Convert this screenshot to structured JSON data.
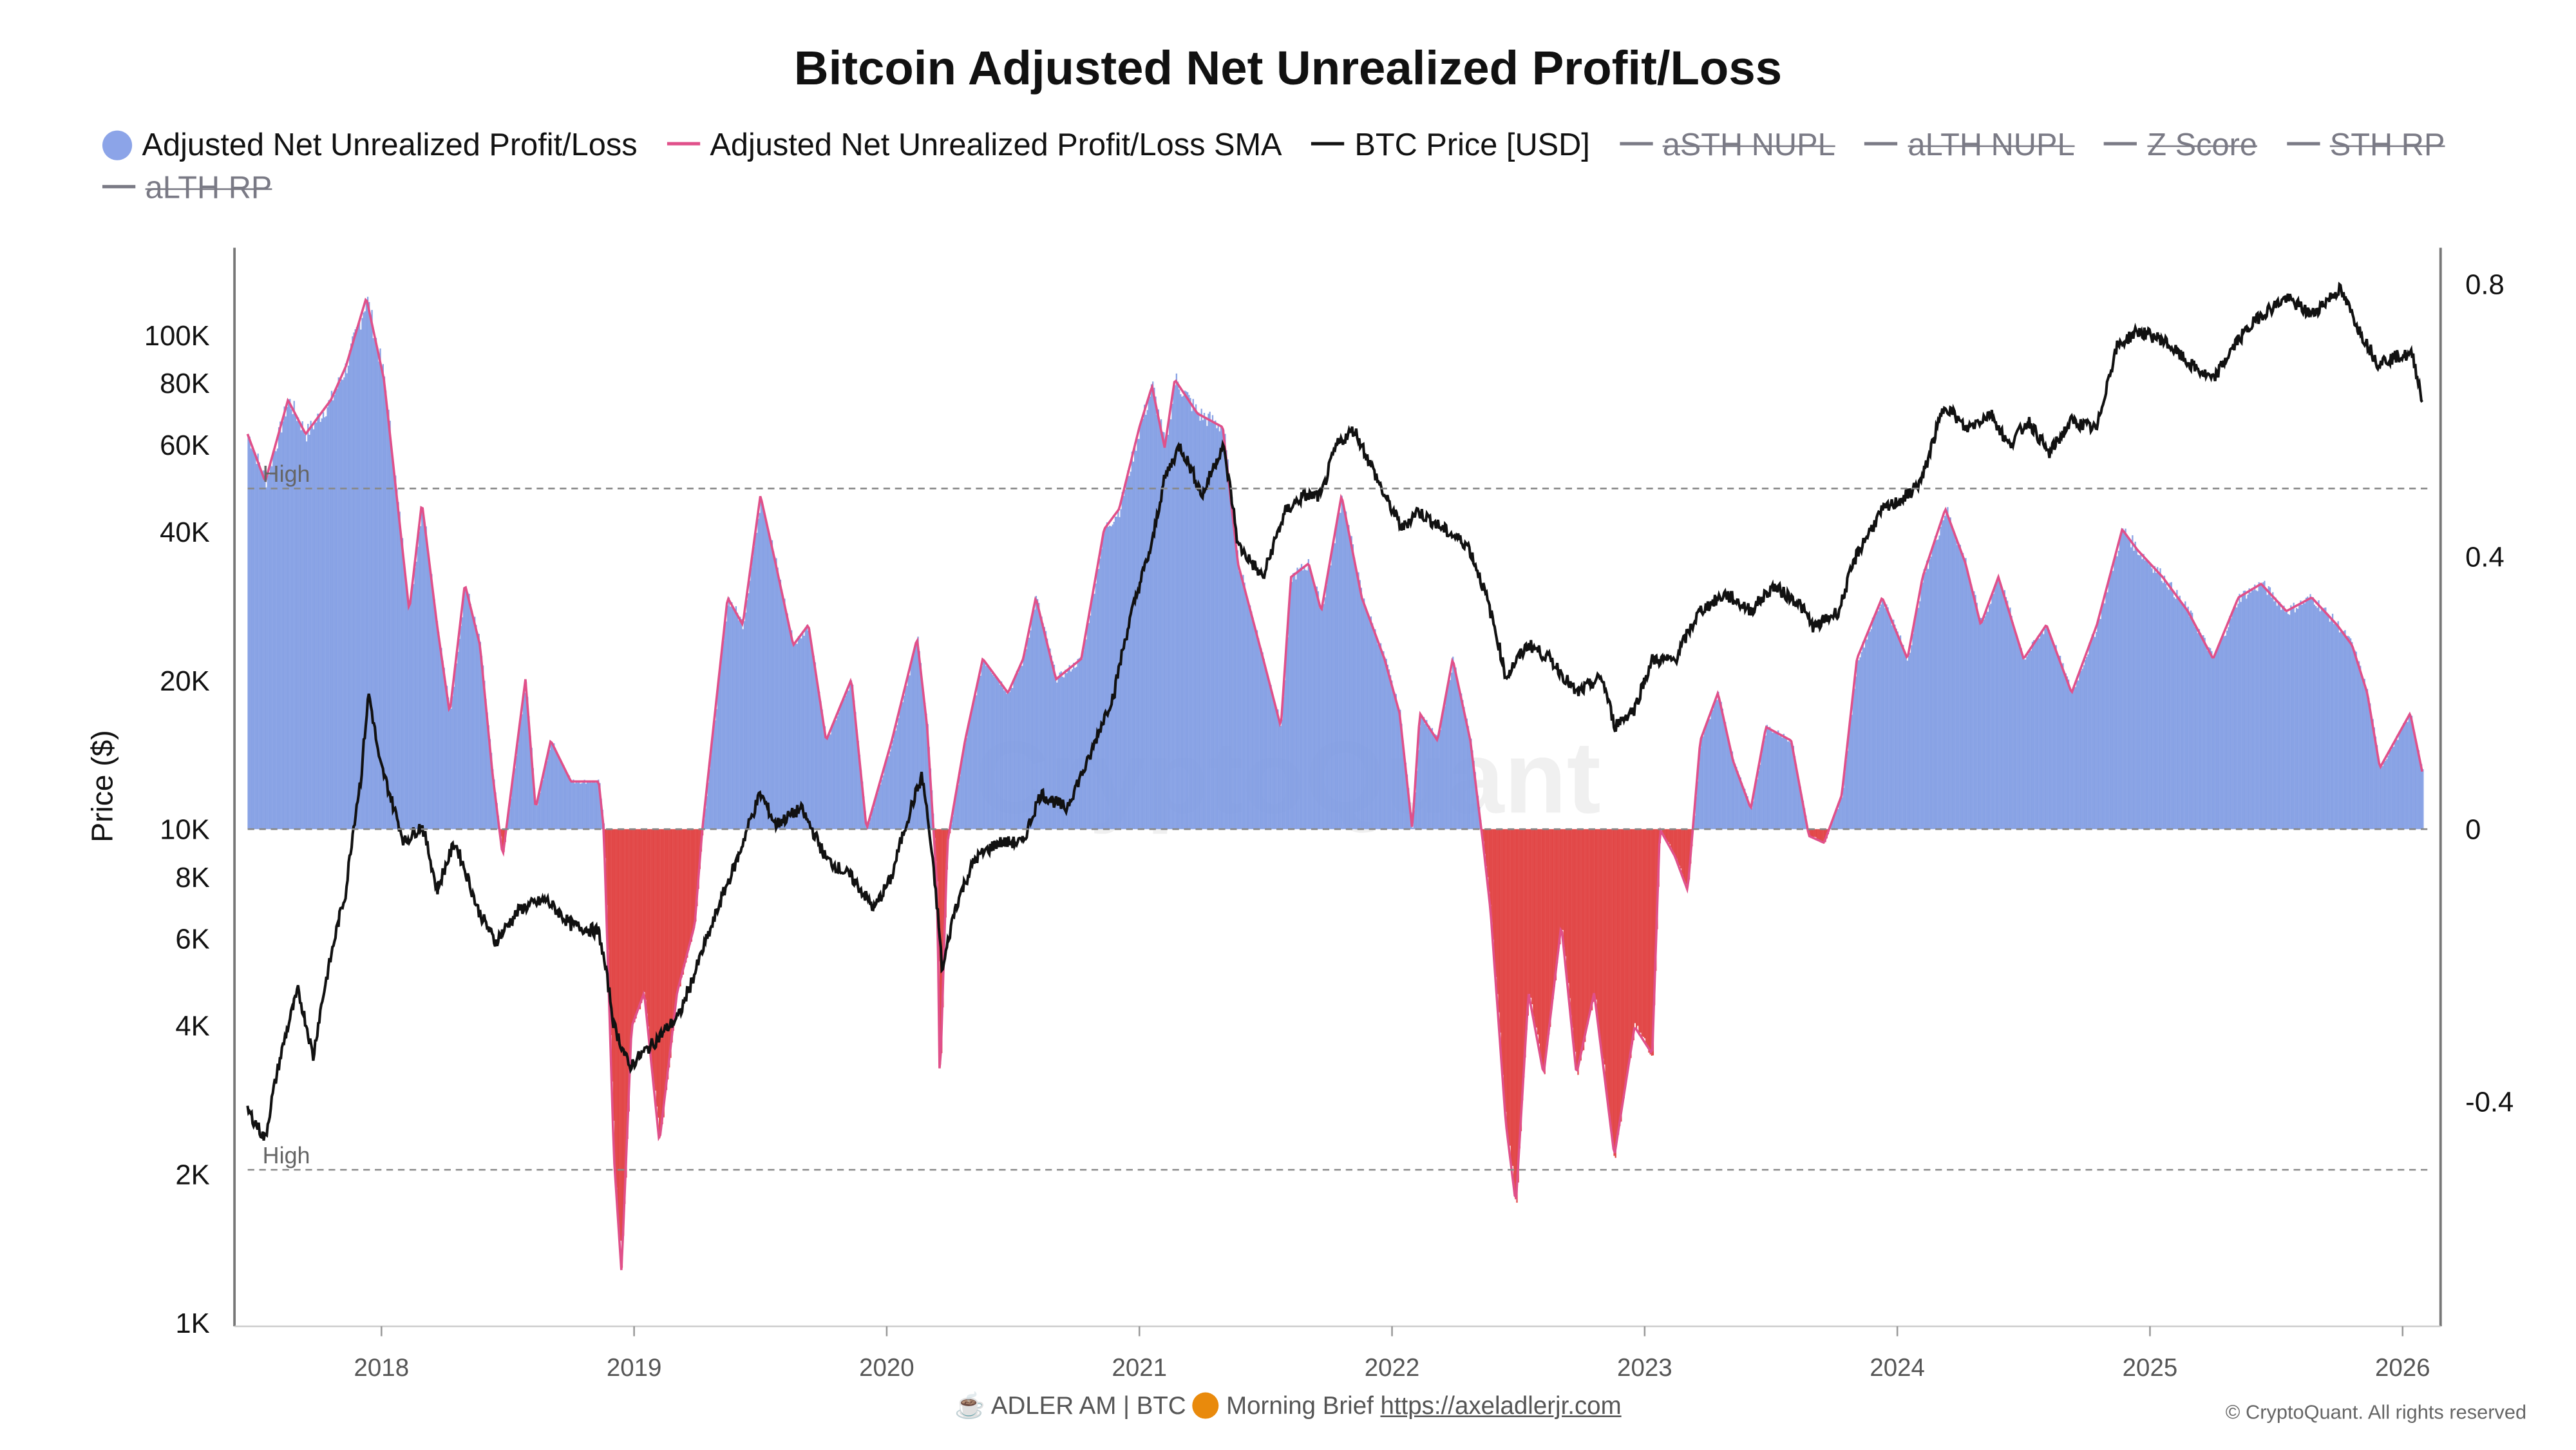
{
  "title": "Bitcoin Adjusted Net Unrealized Profit/Loss",
  "legend": [
    {
      "label": "Adjusted Net Unrealized Profit/Loss",
      "color": "#8ca4e8",
      "shape": "dot",
      "enabled": true
    },
    {
      "label": "Adjusted Net Unrealized Profit/Loss SMA",
      "color": "#e0508a",
      "shape": "line",
      "enabled": true
    },
    {
      "label": "BTC Price [USD]",
      "color": "#111111",
      "shape": "line",
      "enabled": true
    },
    {
      "label": "aSTH NUPL",
      "color": "#7a7a85",
      "shape": "line",
      "enabled": false
    },
    {
      "label": "aLTH NUPL",
      "color": "#7a7a85",
      "shape": "line",
      "enabled": false
    },
    {
      "label": "Z Score",
      "color": "#7a7a85",
      "shape": "line",
      "enabled": false
    },
    {
      "label": "STH RP",
      "color": "#7a7a85",
      "shape": "line",
      "enabled": false
    },
    {
      "label": "aLTH RP",
      "color": "#7a7a85",
      "shape": "line",
      "enabled": false
    }
  ],
  "footer": {
    "coffee_icon": "coffee-cup-icon",
    "text1": "ADLER AM | BTC",
    "coin_icon": "orange-circle-icon",
    "text2": "Morning Brief",
    "link": "https://axeladlerjr.com",
    "copyright": "© CryptoQuant. All rights reserved"
  },
  "watermark": "CryptoQuant",
  "chart_data": {
    "type": "bar+line",
    "title": "Bitcoin Adjusted Net Unrealized Profit/Loss",
    "ylabel": "Price ($)",
    "y_left": {
      "scale": "log",
      "range": [
        1000,
        150000
      ],
      "ticks": [
        {
          "v": 100000,
          "l": "100K"
        },
        {
          "v": 80000,
          "l": "80K"
        },
        {
          "v": 60000,
          "l": "60K"
        },
        {
          "v": 40000,
          "l": "40K"
        },
        {
          "v": 20000,
          "l": "20K"
        },
        {
          "v": 10000,
          "l": "10K"
        },
        {
          "v": 8000,
          "l": "8K"
        },
        {
          "v": 6000,
          "l": "6K"
        },
        {
          "v": 4000,
          "l": "4K"
        },
        {
          "v": 2000,
          "l": "2K"
        },
        {
          "v": 1000,
          "l": "1K"
        }
      ]
    },
    "y_right": {
      "range": [
        -0.73,
        0.8
      ],
      "ticks": [
        {
          "v": 0.8,
          "l": "0.8"
        },
        {
          "v": 0.4,
          "l": "0.4"
        },
        {
          "v": 0,
          "l": "0"
        },
        {
          "v": -0.4,
          "l": "-0.4"
        }
      ]
    },
    "x_ticks": [
      2018,
      2019,
      2020,
      2021,
      2022,
      2023,
      2024,
      2025,
      2026
    ],
    "x_range": [
      2017.47,
      2026.1
    ],
    "thresholds": [
      {
        "label": "High",
        "value": 0.5
      },
      {
        "label": "High",
        "value": -0.5
      }
    ],
    "nupl": [
      [
        2017.47,
        0.58
      ],
      [
        2017.54,
        0.51
      ],
      [
        2017.63,
        0.63
      ],
      [
        2017.7,
        0.58
      ],
      [
        2017.8,
        0.63
      ],
      [
        2017.86,
        0.68
      ],
      [
        2017.94,
        0.78
      ],
      [
        2018.01,
        0.66
      ],
      [
        2018.06,
        0.49
      ],
      [
        2018.11,
        0.32
      ],
      [
        2018.16,
        0.48
      ],
      [
        2018.22,
        0.3
      ],
      [
        2018.27,
        0.17
      ],
      [
        2018.33,
        0.36
      ],
      [
        2018.39,
        0.27
      ],
      [
        2018.44,
        0.08
      ],
      [
        2018.48,
        -0.04
      ],
      [
        2018.57,
        0.22
      ],
      [
        2018.61,
        0.03
      ],
      [
        2018.67,
        0.13
      ],
      [
        2018.75,
        0.07
      ],
      [
        2018.86,
        0.07
      ],
      [
        2018.88,
        0
      ],
      [
        2018.92,
        -0.48
      ],
      [
        2018.95,
        -0.65
      ],
      [
        2018.99,
        -0.29
      ],
      [
        2019.04,
        -0.24
      ],
      [
        2019.1,
        -0.46
      ],
      [
        2019.17,
        -0.24
      ],
      [
        2019.24,
        -0.14
      ],
      [
        2019.27,
        0
      ],
      [
        2019.37,
        0.34
      ],
      [
        2019.43,
        0.3
      ],
      [
        2019.5,
        0.49
      ],
      [
        2019.56,
        0.39
      ],
      [
        2019.63,
        0.27
      ],
      [
        2019.69,
        0.3
      ],
      [
        2019.76,
        0.13
      ],
      [
        2019.86,
        0.22
      ],
      [
        2019.92,
        0.0
      ],
      [
        2020.02,
        0.13
      ],
      [
        2020.12,
        0.28
      ],
      [
        2020.16,
        0.15
      ],
      [
        2020.2,
        -0.09
      ],
      [
        2020.21,
        -0.38
      ],
      [
        2020.24,
        -0.02
      ],
      [
        2020.31,
        0.13
      ],
      [
        2020.38,
        0.25
      ],
      [
        2020.48,
        0.2
      ],
      [
        2020.54,
        0.25
      ],
      [
        2020.59,
        0.34
      ],
      [
        2020.67,
        0.22
      ],
      [
        2020.77,
        0.25
      ],
      [
        2020.86,
        0.44
      ],
      [
        2020.92,
        0.47
      ],
      [
        2021.0,
        0.59
      ],
      [
        2021.05,
        0.65
      ],
      [
        2021.1,
        0.56
      ],
      [
        2021.14,
        0.66
      ],
      [
        2021.23,
        0.61
      ],
      [
        2021.33,
        0.59
      ],
      [
        2021.39,
        0.39
      ],
      [
        2021.49,
        0.25
      ],
      [
        2021.56,
        0.15
      ],
      [
        2021.6,
        0.37
      ],
      [
        2021.67,
        0.39
      ],
      [
        2021.72,
        0.32
      ],
      [
        2021.8,
        0.49
      ],
      [
        2021.88,
        0.34
      ],
      [
        2021.97,
        0.25
      ],
      [
        2022.03,
        0.17
      ],
      [
        2022.08,
        0.0
      ],
      [
        2022.11,
        0.17
      ],
      [
        2022.18,
        0.13
      ],
      [
        2022.24,
        0.25
      ],
      [
        2022.31,
        0.13
      ],
      [
        2022.36,
        -0.02
      ],
      [
        2022.39,
        -0.12
      ],
      [
        2022.45,
        -0.43
      ],
      [
        2022.49,
        -0.55
      ],
      [
        2022.54,
        -0.24
      ],
      [
        2022.6,
        -0.36
      ],
      [
        2022.67,
        -0.14
      ],
      [
        2022.73,
        -0.36
      ],
      [
        2022.8,
        -0.24
      ],
      [
        2022.88,
        -0.48
      ],
      [
        2022.96,
        -0.29
      ],
      [
        2023.03,
        -0.33
      ],
      [
        2023.06,
        0
      ],
      [
        2023.12,
        -0.04
      ],
      [
        2023.17,
        -0.09
      ],
      [
        2023.22,
        0.13
      ],
      [
        2023.29,
        0.2
      ],
      [
        2023.35,
        0.1
      ],
      [
        2023.42,
        0.03
      ],
      [
        2023.48,
        0.15
      ],
      [
        2023.58,
        0.13
      ],
      [
        2023.65,
        -0.01
      ],
      [
        2023.71,
        -0.02
      ],
      [
        2023.78,
        0.05
      ],
      [
        2023.84,
        0.25
      ],
      [
        2023.94,
        0.34
      ],
      [
        2024.04,
        0.25
      ],
      [
        2024.1,
        0.37
      ],
      [
        2024.19,
        0.47
      ],
      [
        2024.27,
        0.39
      ],
      [
        2024.33,
        0.3
      ],
      [
        2024.4,
        0.37
      ],
      [
        2024.5,
        0.25
      ],
      [
        2024.59,
        0.3
      ],
      [
        2024.69,
        0.2
      ],
      [
        2024.79,
        0.3
      ],
      [
        2024.89,
        0.44
      ],
      [
        2024.95,
        0.41
      ],
      [
        2025.05,
        0.37
      ],
      [
        2025.15,
        0.32
      ],
      [
        2025.25,
        0.25
      ],
      [
        2025.35,
        0.34
      ],
      [
        2025.44,
        0.36
      ],
      [
        2025.54,
        0.32
      ],
      [
        2025.64,
        0.34
      ],
      [
        2025.74,
        0.3
      ],
      [
        2025.8,
        0.27
      ],
      [
        2025.86,
        0.2
      ],
      [
        2025.91,
        0.09
      ],
      [
        2025.97,
        0.13
      ],
      [
        2026.03,
        0.17
      ],
      [
        2026.08,
        0.08
      ]
    ],
    "btc_price": [
      [
        2017.47,
        2700
      ],
      [
        2017.54,
        2350
      ],
      [
        2017.6,
        3450
      ],
      [
        2017.67,
        4700
      ],
      [
        2017.73,
        3450
      ],
      [
        2017.8,
        5500
      ],
      [
        2017.86,
        7500
      ],
      [
        2017.92,
        12800
      ],
      [
        2017.95,
        18800
      ],
      [
        2017.99,
        13800
      ],
      [
        2018.05,
        11000
      ],
      [
        2018.09,
        9400
      ],
      [
        2018.16,
        10200
      ],
      [
        2018.22,
        7500
      ],
      [
        2018.29,
        9400
      ],
      [
        2018.38,
        6900
      ],
      [
        2018.45,
        5900
      ],
      [
        2018.55,
        6900
      ],
      [
        2018.65,
        7200
      ],
      [
        2018.75,
        6400
      ],
      [
        2018.86,
        6200
      ],
      [
        2018.92,
        4000
      ],
      [
        2018.98,
        3300
      ],
      [
        2019.08,
        3700
      ],
      [
        2019.18,
        4200
      ],
      [
        2019.24,
        5100
      ],
      [
        2019.31,
        6400
      ],
      [
        2019.41,
        8700
      ],
      [
        2019.5,
        11800
      ],
      [
        2019.56,
        10200
      ],
      [
        2019.66,
        11000
      ],
      [
        2019.76,
        8700
      ],
      [
        2019.86,
        8000
      ],
      [
        2019.95,
        6900
      ],
      [
        2020.02,
        8000
      ],
      [
        2020.14,
        12800
      ],
      [
        2020.18,
        8700
      ],
      [
        2020.22,
        5100
      ],
      [
        2020.27,
        6900
      ],
      [
        2020.35,
        8700
      ],
      [
        2020.44,
        9400
      ],
      [
        2020.54,
        9400
      ],
      [
        2020.61,
        11800
      ],
      [
        2020.71,
        11000
      ],
      [
        2020.8,
        13800
      ],
      [
        2020.9,
        18800
      ],
      [
        2020.99,
        29900
      ],
      [
        2021.05,
        37600
      ],
      [
        2021.1,
        51200
      ],
      [
        2021.16,
        59800
      ],
      [
        2021.25,
        47300
      ],
      [
        2021.33,
        59800
      ],
      [
        2021.39,
        37600
      ],
      [
        2021.49,
        32200
      ],
      [
        2021.58,
        44100
      ],
      [
        2021.65,
        47300
      ],
      [
        2021.72,
        47300
      ],
      [
        2021.78,
        59800
      ],
      [
        2021.85,
        64500
      ],
      [
        2021.91,
        55400
      ],
      [
        2021.97,
        47300
      ],
      [
        2022.04,
        40600
      ],
      [
        2022.1,
        44100
      ],
      [
        2022.2,
        40600
      ],
      [
        2022.3,
        37600
      ],
      [
        2022.37,
        29900
      ],
      [
        2022.45,
        20300
      ],
      [
        2022.54,
        23700
      ],
      [
        2022.63,
        22000
      ],
      [
        2022.73,
        18800
      ],
      [
        2022.83,
        20300
      ],
      [
        2022.88,
        16200
      ],
      [
        2022.96,
        17500
      ],
      [
        2023.03,
        22000
      ],
      [
        2023.12,
        22000
      ],
      [
        2023.22,
        27700
      ],
      [
        2023.32,
        29900
      ],
      [
        2023.42,
        27700
      ],
      [
        2023.51,
        31000
      ],
      [
        2023.61,
        28700
      ],
      [
        2023.67,
        25600
      ],
      [
        2023.77,
        27700
      ],
      [
        2023.84,
        36000
      ],
      [
        2023.94,
        44100
      ],
      [
        2024.04,
        47300
      ],
      [
        2024.1,
        51200
      ],
      [
        2024.19,
        72500
      ],
      [
        2024.27,
        64500
      ],
      [
        2024.37,
        69500
      ],
      [
        2024.44,
        59800
      ],
      [
        2024.52,
        67000
      ],
      [
        2024.6,
        57500
      ],
      [
        2024.69,
        67000
      ],
      [
        2024.79,
        64500
      ],
      [
        2024.87,
        94800
      ],
      [
        2024.95,
        102000
      ],
      [
        2025.05,
        98000
      ],
      [
        2025.15,
        88000
      ],
      [
        2025.25,
        81000
      ],
      [
        2025.35,
        98000
      ],
      [
        2025.44,
        110000
      ],
      [
        2025.54,
        119000
      ],
      [
        2025.64,
        110000
      ],
      [
        2025.75,
        124000
      ],
      [
        2025.83,
        102000
      ],
      [
        2025.9,
        88000
      ],
      [
        2025.99,
        91000
      ],
      [
        2026.04,
        91000
      ],
      [
        2026.08,
        72500
      ]
    ]
  }
}
